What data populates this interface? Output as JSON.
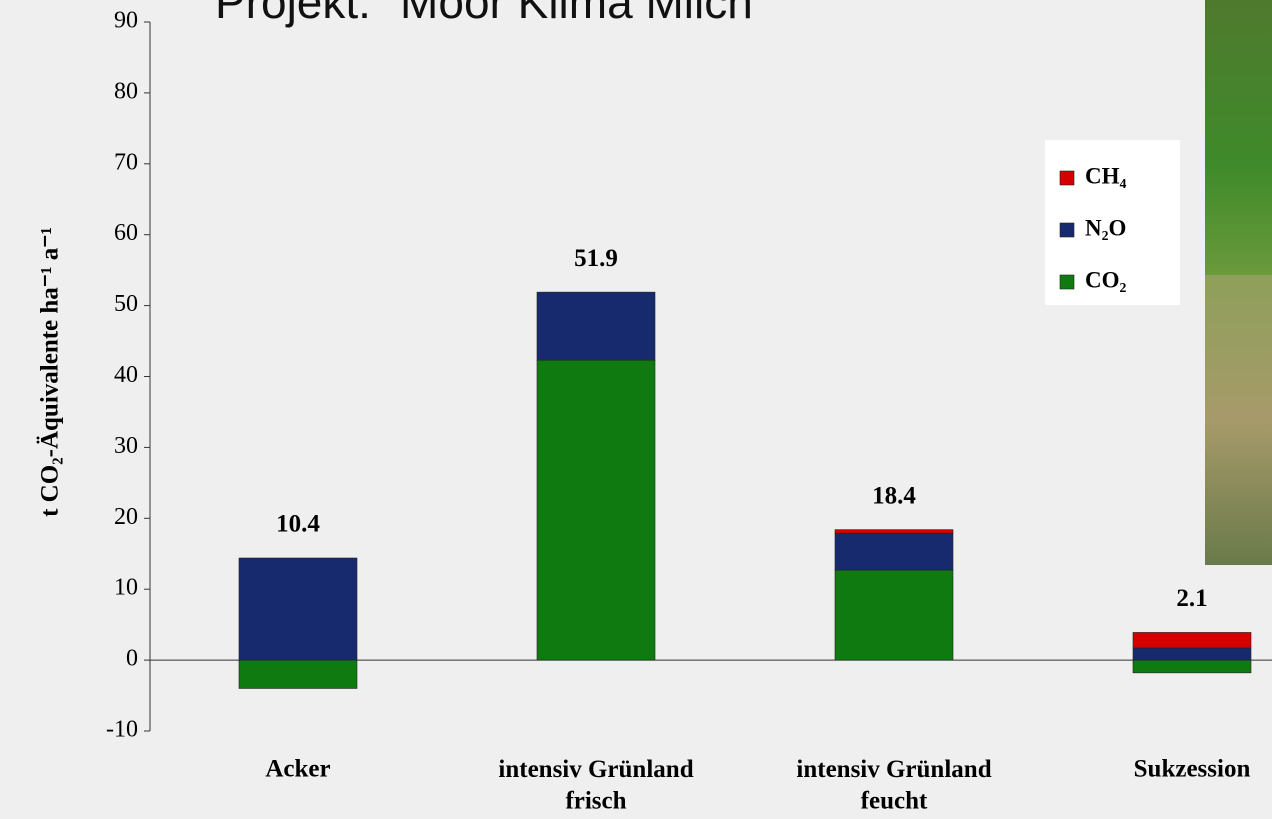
{
  "chart_data": {
    "type": "stacked_bar",
    "title": "Projekt: \"Moor Klima Milch\"",
    "ylabel": "t CO₂-Äquivalente ha⁻¹ a⁻¹",
    "categories": [
      "Acker",
      "intensiv Grünland\nfrisch",
      "intensiv Grünland\nfeucht",
      "Sukzession"
    ],
    "series": [
      {
        "name": "CO₂",
        "color": "#0e7a10",
        "values": [
          -4.0,
          42.3,
          12.7,
          -1.8
        ]
      },
      {
        "name": "N₂O",
        "color": "#172a6e",
        "values": [
          14.4,
          9.6,
          5.2,
          1.7
        ]
      },
      {
        "name": "CH₄",
        "color": "#d40000",
        "values": [
          0,
          0,
          0.5,
          2.2
        ]
      }
    ],
    "totals": [
      10.4,
      51.9,
      18.4,
      2.1
    ],
    "ylim": [
      -10,
      90
    ],
    "yticks": [
      -10,
      0,
      10,
      20,
      30,
      40,
      50,
      60,
      70,
      80,
      90
    ]
  }
}
